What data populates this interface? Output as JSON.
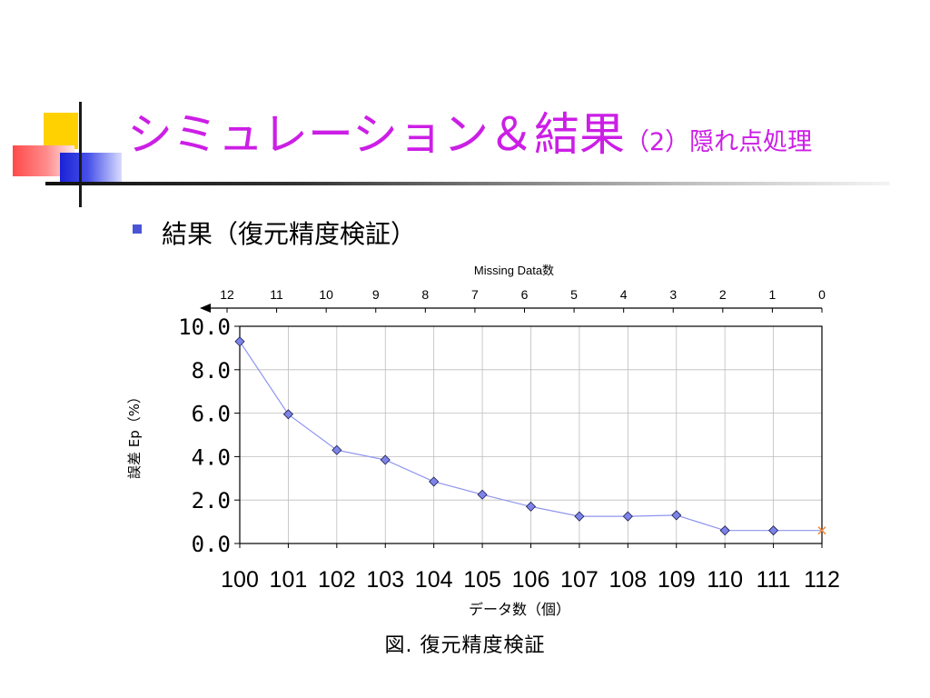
{
  "slide": {
    "title_main": "シミュレーション＆結果",
    "title_sub": "（2）隠れ点処理",
    "bullet": "結果（復元精度検証）",
    "caption": "図. 復元精度検証",
    "colors": {
      "title": "#cc1ee6",
      "bullet": "#4a55d6",
      "line": "#8f95ee",
      "marker": "#7d84e8",
      "last_marker": "#f28c3a"
    }
  },
  "chart_data": {
    "type": "line",
    "x": [
      100,
      101,
      102,
      103,
      104,
      105,
      106,
      107,
      108,
      109,
      110,
      111,
      112
    ],
    "series": [
      {
        "values": [
          9.3,
          5.95,
          4.3,
          3.85,
          2.85,
          2.25,
          1.7,
          1.25,
          1.25,
          1.3,
          0.6,
          0.6,
          0.6
        ]
      }
    ],
    "xlabel": "データ数（個）",
    "ylabel": "誤差 Ep（%）",
    "x_tick_labels": [
      "100",
      "101",
      "102",
      "103",
      "104",
      "105",
      "106",
      "107",
      "108",
      "109",
      "110",
      "111",
      "112"
    ],
    "y_tick_labels": [
      "0.0",
      "2.0",
      "4.0",
      "6.0",
      "8.0",
      "10.0"
    ],
    "y_ticks": [
      0,
      2,
      4,
      6,
      8,
      10
    ],
    "ylim": [
      0,
      10
    ],
    "xlim": [
      100,
      112
    ],
    "secondary_axis": {
      "position": "top",
      "label": "Missing Data数",
      "tick_labels": [
        "12",
        "11",
        "10",
        "9",
        "8",
        "7",
        "6",
        "5",
        "4",
        "3",
        "2",
        "1",
        "0"
      ],
      "arrow": "left"
    },
    "grid": true,
    "last_point_marker": "x"
  }
}
